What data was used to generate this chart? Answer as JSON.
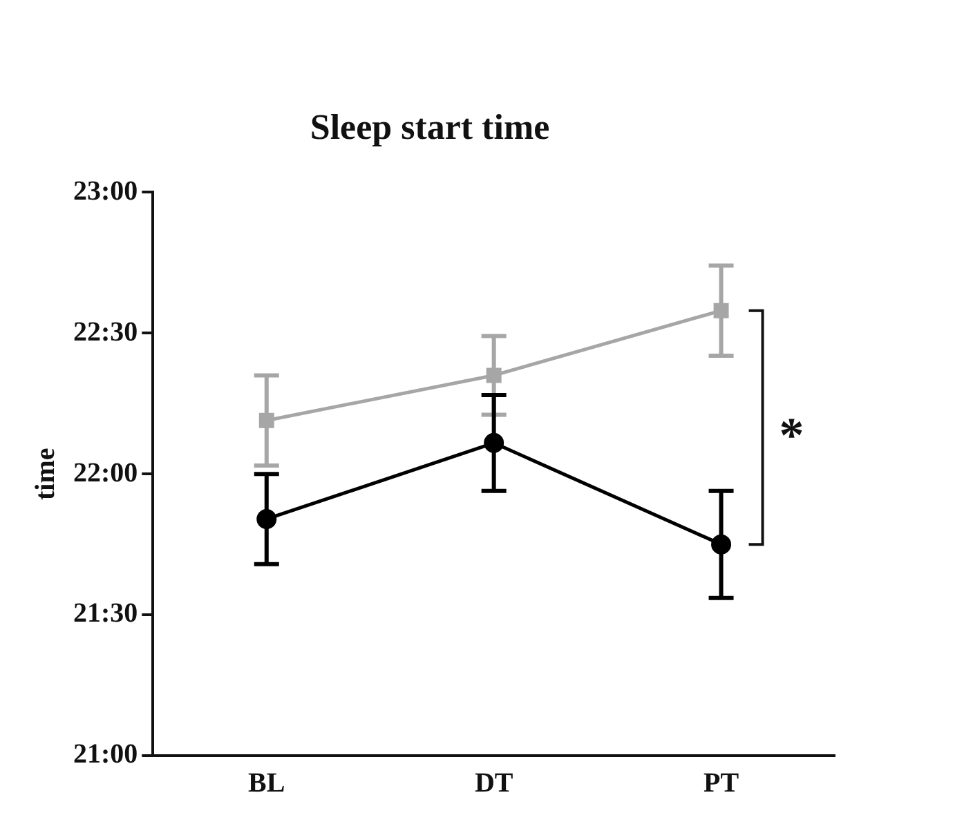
{
  "chart_data": {
    "type": "line",
    "title": "Sleep start time",
    "ylabel": "time",
    "categories": [
      "BL",
      "DT",
      "PT"
    ],
    "series": [
      {
        "color": "#a6a6a6",
        "marker": "square",
        "values": [
          22.19,
          22.35,
          22.58
        ],
        "errors": [
          0.16,
          0.14,
          0.16
        ]
      },
      {
        "color": "#000000",
        "marker": "circle",
        "values": [
          21.84,
          22.11,
          21.75
        ],
        "errors": [
          0.16,
          0.17,
          0.19
        ]
      }
    ],
    "ylim": [
      21,
      23
    ],
    "yticks": [
      {
        "value": 21,
        "label": "21:00"
      },
      {
        "value": 21.5,
        "label": "21:30"
      },
      {
        "value": 22,
        "label": "22:00"
      },
      {
        "value": 22.5,
        "label": "22:30"
      },
      {
        "value": 23,
        "label": "23:00"
      }
    ],
    "grid": false,
    "legend": false,
    "annotations": [
      "*"
    ]
  }
}
